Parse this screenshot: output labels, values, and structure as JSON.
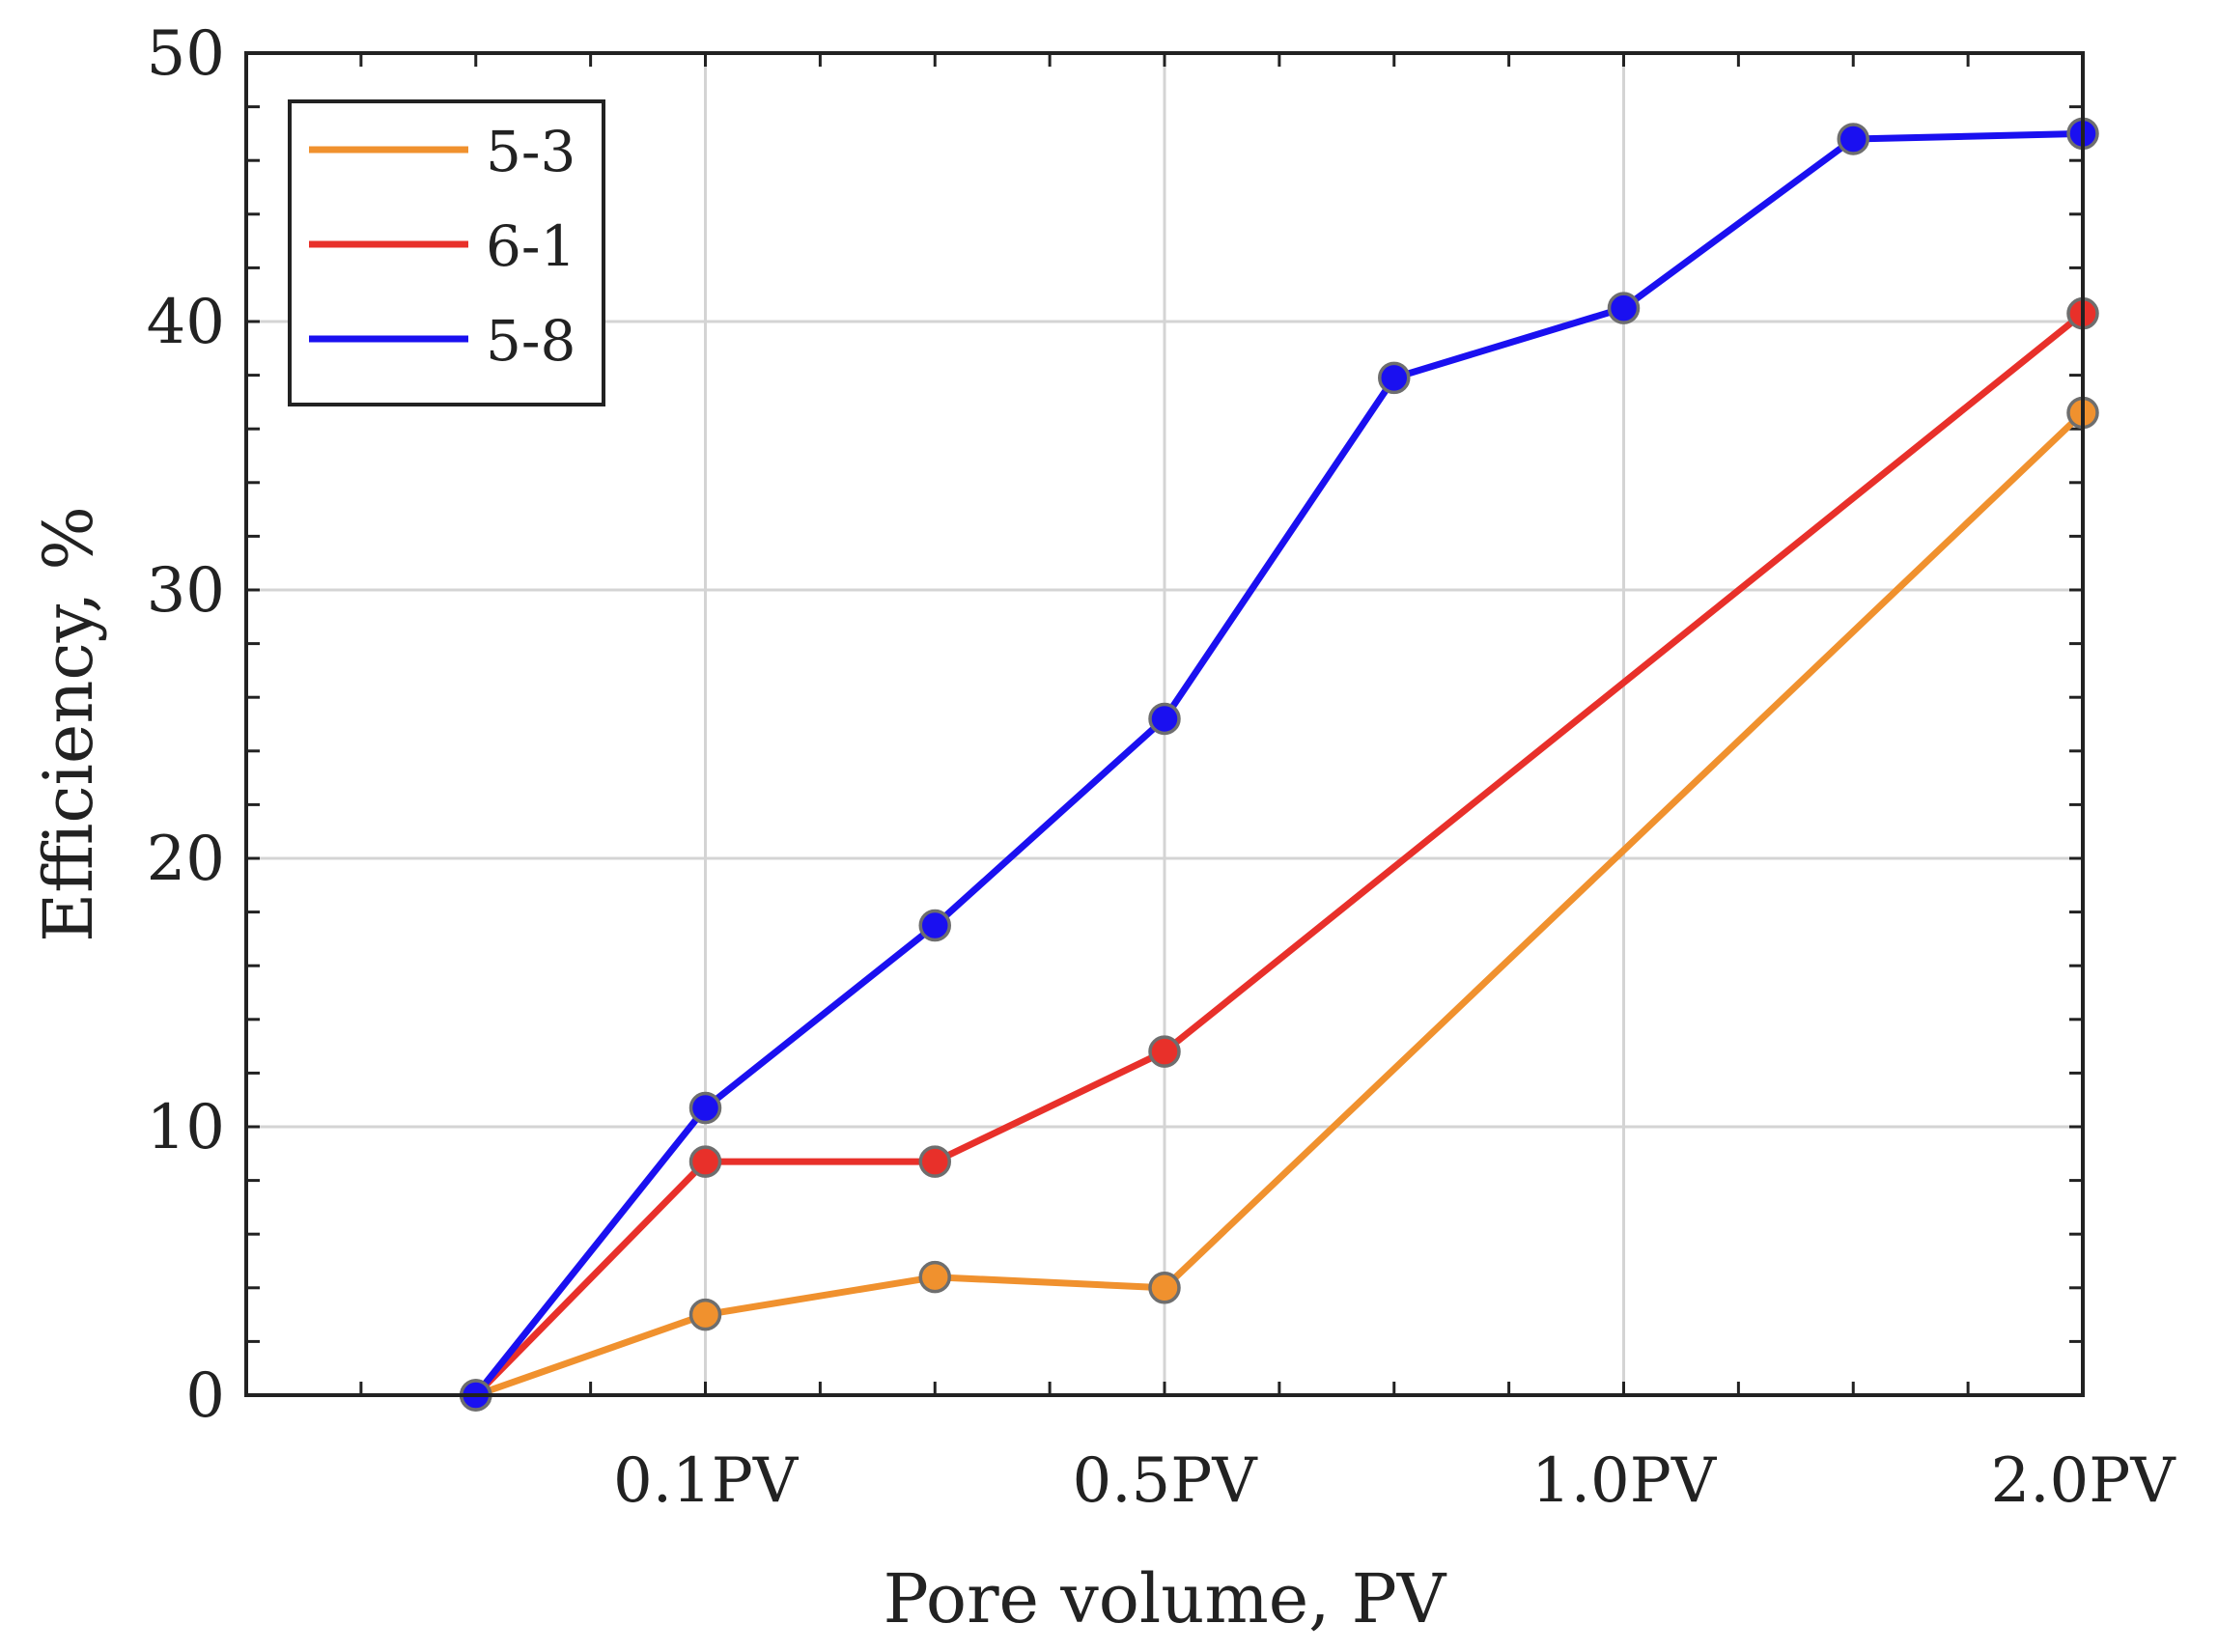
{
  "chart_data": {
    "type": "line",
    "title": "",
    "xlabel": "Pore volume, PV",
    "ylabel": "Efficiency, %",
    "xlim": [
      -1,
      7
    ],
    "ylim": [
      0,
      50
    ],
    "x_ticks": [
      {
        "value": 1,
        "label": "0.1PV"
      },
      {
        "value": 3,
        "label": "0.5PV"
      },
      {
        "value": 5,
        "label": "1.0PV"
      },
      {
        "value": 7,
        "label": "2.0PV"
      }
    ],
    "y_ticks": [
      0,
      10,
      20,
      30,
      40,
      50
    ],
    "grid": true,
    "legend_position": "top-left",
    "series": [
      {
        "name": "5-3",
        "color": "#f0912e",
        "points": [
          [
            0,
            0
          ],
          [
            1,
            3.0
          ],
          [
            2,
            4.4
          ],
          [
            3,
            4.0
          ],
          [
            7,
            36.6
          ]
        ]
      },
      {
        "name": "6-1",
        "color": "#e8302a",
        "points": [
          [
            0,
            0
          ],
          [
            1,
            8.7
          ],
          [
            2,
            8.7
          ],
          [
            3,
            12.8
          ],
          [
            7,
            40.3
          ]
        ]
      },
      {
        "name": "5-8",
        "color": "#1a10f0",
        "points": [
          [
            0,
            0
          ],
          [
            1,
            10.7
          ],
          [
            2,
            17.5
          ],
          [
            3,
            25.2
          ],
          [
            4,
            37.9
          ],
          [
            5,
            40.5
          ],
          [
            6,
            46.8
          ],
          [
            7,
            47.0
          ]
        ]
      }
    ]
  }
}
